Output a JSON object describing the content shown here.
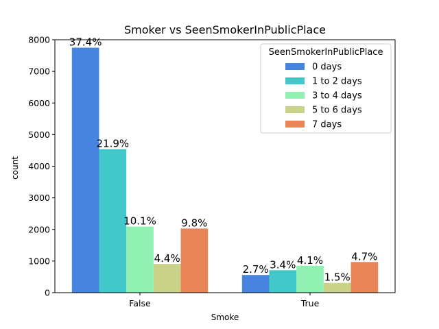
{
  "chart_data": {
    "type": "bar",
    "title": "Smoker vs SeenSmokerInPublicPlace",
    "xlabel": "Smoke",
    "ylabel": "count",
    "categories": [
      "False",
      "True"
    ],
    "ylim": [
      0,
      8000
    ],
    "yticks": [
      0,
      1000,
      2000,
      3000,
      4000,
      5000,
      6000,
      7000,
      8000
    ],
    "grid": false,
    "legend": {
      "title": "SeenSmokerInPublicPlace",
      "placement": "top-right"
    },
    "series": [
      {
        "name": "0 days",
        "color": "#4684e0",
        "values": [
          7750,
          560
        ],
        "labels": [
          "37.4%",
          "2.7%"
        ]
      },
      {
        "name": "1 to 2 days",
        "color": "#42c8c8",
        "values": [
          4540,
          710
        ],
        "labels": [
          "21.9%",
          "3.4%"
        ]
      },
      {
        "name": "3 to 4 days",
        "color": "#90f1b3",
        "values": [
          2090,
          850
        ],
        "labels": [
          "10.1%",
          "4.1%"
        ]
      },
      {
        "name": "5 to 6 days",
        "color": "#cbd38b",
        "values": [
          910,
          310
        ],
        "labels": [
          "4.4%",
          "1.5%"
        ]
      },
      {
        "name": "7 days",
        "color": "#e8865a",
        "values": [
          2030,
          970
        ],
        "labels": [
          "9.8%",
          "4.7%"
        ]
      }
    ]
  }
}
